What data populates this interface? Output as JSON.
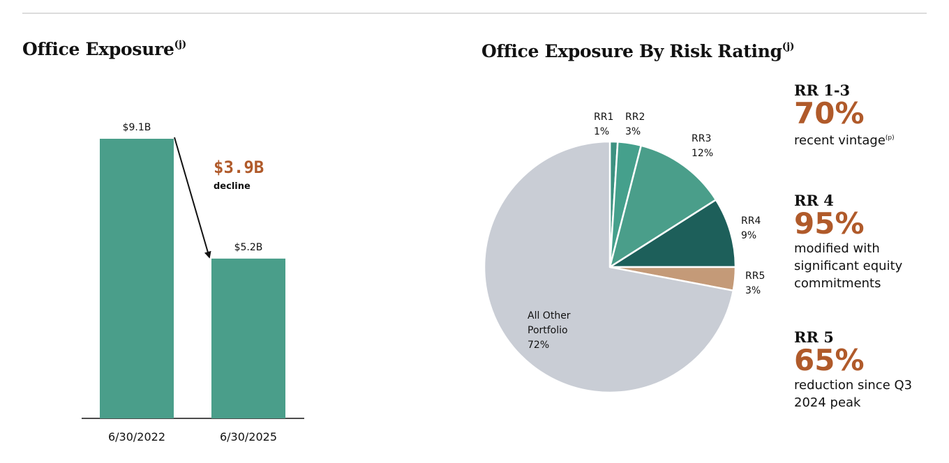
{
  "left_chart": {
    "title": "Office Exposure",
    "title_sup": "(j)",
    "decline": {
      "value": "$3.9B",
      "label": "decline"
    }
  },
  "right_chart": {
    "title": "Office Exposure By Risk Rating",
    "title_sup": "(j)"
  },
  "callouts": [
    {
      "head": "RR 1-3",
      "pct": "70%",
      "text": "recent vintage",
      "sup": "(p)"
    },
    {
      "head": "RR 4",
      "pct": "95%",
      "text": "modified with significant equity commitments",
      "sup": ""
    },
    {
      "head": "RR 5",
      "pct": "65%",
      "text": "reduction since Q3 2024 peak",
      "sup": ""
    }
  ],
  "colors": {
    "bar": "#4a9e8a",
    "rr1": "#3d9180",
    "rr2": "#45a08c",
    "rr3": "#4a9e8a",
    "rr4": "#1d5f5a",
    "rr5": "#c49a78",
    "other": "#c9cdd5",
    "accent": "#b05a2a"
  },
  "chart_data": [
    {
      "type": "bar",
      "title": "Office Exposure",
      "categories": [
        "6/30/2022",
        "6/30/2025"
      ],
      "values": [
        9.1,
        5.2
      ],
      "value_labels": [
        "$9.1B",
        "$5.2B"
      ],
      "unit": "$B",
      "ylim": [
        0,
        9.1
      ],
      "grid": false,
      "annotation": "$3.9B decline"
    },
    {
      "type": "pie",
      "title": "Office Exposure By Risk Rating",
      "slices": [
        {
          "label": "RR1",
          "value": 1,
          "display": "1%"
        },
        {
          "label": "RR2",
          "value": 3,
          "display": "3%"
        },
        {
          "label": "RR3",
          "value": 12,
          "display": "12%"
        },
        {
          "label": "RR4",
          "value": 9,
          "display": "9%"
        },
        {
          "label": "RR5",
          "value": 3,
          "display": "3%"
        },
        {
          "label": "All Other Portfolio",
          "value": 72,
          "display": "72%"
        }
      ]
    }
  ]
}
